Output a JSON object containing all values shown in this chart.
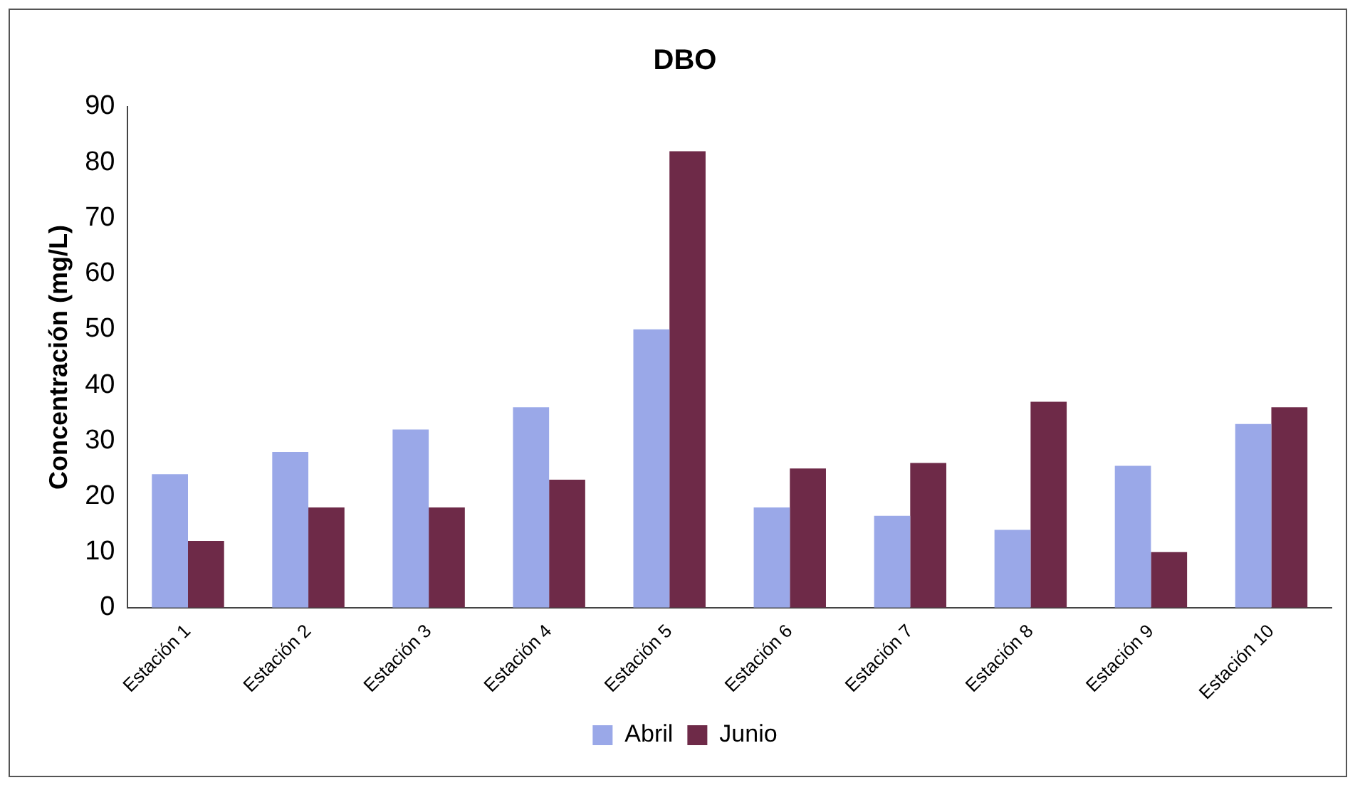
{
  "chart_data": {
    "type": "bar",
    "title": "DBO",
    "ylabel": "Concentración (mg/L)",
    "categories": [
      "Estación 1",
      "Estación 2",
      "Estación 3",
      "Estación 4",
      "Estación 5",
      "Estación 6",
      "Estación 7",
      "Estación 8",
      "Estación 9",
      "Estación 10"
    ],
    "series": [
      {
        "name": "Abril",
        "color": "#9aa8e8",
        "values": [
          24,
          28,
          32,
          36,
          50,
          18,
          16.5,
          14,
          25.5,
          33
        ]
      },
      {
        "name": "Junio",
        "color": "#6e2a48",
        "values": [
          12,
          18,
          18,
          23,
          82,
          25,
          26,
          37,
          10,
          36
        ]
      }
    ],
    "ylim": [
      0,
      90
    ],
    "yticks": [
      0,
      10,
      20,
      30,
      40,
      50,
      60,
      70,
      80,
      90
    ],
    "grid": false,
    "legend": "bottom"
  }
}
